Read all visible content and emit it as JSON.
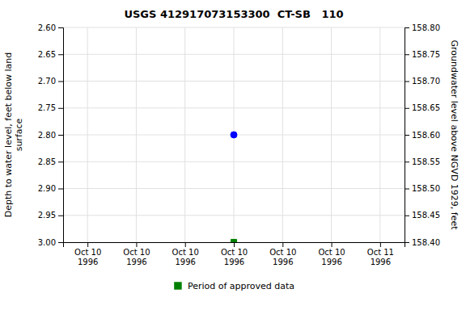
{
  "chart_data": {
    "type": "scatter",
    "title": "USGS 412917073153300  CT-SB   110",
    "y_label": "Depth to water level, feet below land\n surface",
    "y2_label": "Groundwater level above NGVD 1929, feet",
    "categories": [
      "Oct 10\n1996",
      "Oct 10\n1996",
      "Oct 10\n1996",
      "Oct 10\n1996",
      "Oct 10\n1996",
      "Oct 10\n1996",
      "Oct 11\n1996"
    ],
    "series": [
      {
        "color": "blue",
        "marker": "circle",
        "values": [
          null,
          null,
          null,
          2.8,
          null,
          null,
          null
        ]
      },
      {
        "name": "Period of approved data",
        "color": "#008000",
        "marker": "square",
        "values": [
          null,
          null,
          null,
          3.0,
          null,
          null,
          null
        ]
      }
    ],
    "ylim": [
      3.0,
      2.6
    ],
    "yticks": [
      {
        "value": 2.6,
        "label": "2.60"
      },
      2.65,
      {
        "value": 2.7,
        "label": "2.70"
      },
      2.75,
      {
        "value": 2.8,
        "label": "2.80"
      },
      2.85,
      {
        "value": 2.9,
        "label": "2.90"
      },
      2.95,
      {
        "value": 3.0,
        "label": "3.00"
      }
    ],
    "y2lim": [
      158.4,
      158.8
    ],
    "y2ticks": [
      {
        "value": 158.8,
        "label": "158.80"
      },
      158.75,
      {
        "value": 158.7,
        "label": "158.70"
      },
      158.65,
      {
        "value": 158.6,
        "label": "158.60"
      },
      158.55,
      {
        "value": 158.5,
        "label": "158.50"
      },
      158.45,
      {
        "value": 158.4,
        "label": "158.40"
      }
    ],
    "grid": true,
    "legend": "bottom"
  }
}
